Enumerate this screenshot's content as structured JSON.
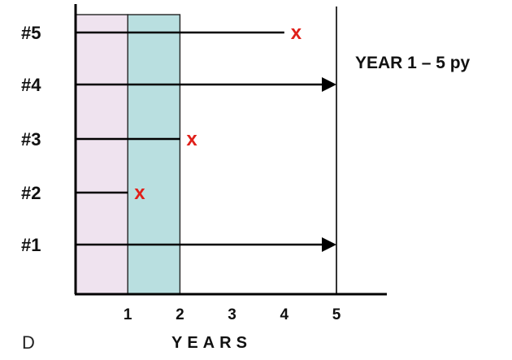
{
  "panel_label": "D",
  "annotation": "YEAR 1 – 5 py",
  "x_axis": {
    "title": "YEARS",
    "ticks": [
      "1",
      "2",
      "3",
      "4",
      "5"
    ]
  },
  "shaded_intervals": [
    {
      "start": 0,
      "end": 1,
      "color": "#efe3ef"
    },
    {
      "start": 1,
      "end": 2,
      "color": "#b9dfe0"
    }
  ],
  "subjects": [
    {
      "label": "#5",
      "end_year": 4.0,
      "outcome": "event",
      "mark": "x"
    },
    {
      "label": "#4",
      "end_year": 5.0,
      "outcome": "survived",
      "mark": ""
    },
    {
      "label": "#3",
      "end_year": 2.0,
      "outcome": "event",
      "mark": "x"
    },
    {
      "label": "#2",
      "end_year": 1.0,
      "outcome": "event",
      "mark": "x"
    },
    {
      "label": "#1",
      "end_year": 5.0,
      "outcome": "survived",
      "mark": ""
    }
  ]
}
